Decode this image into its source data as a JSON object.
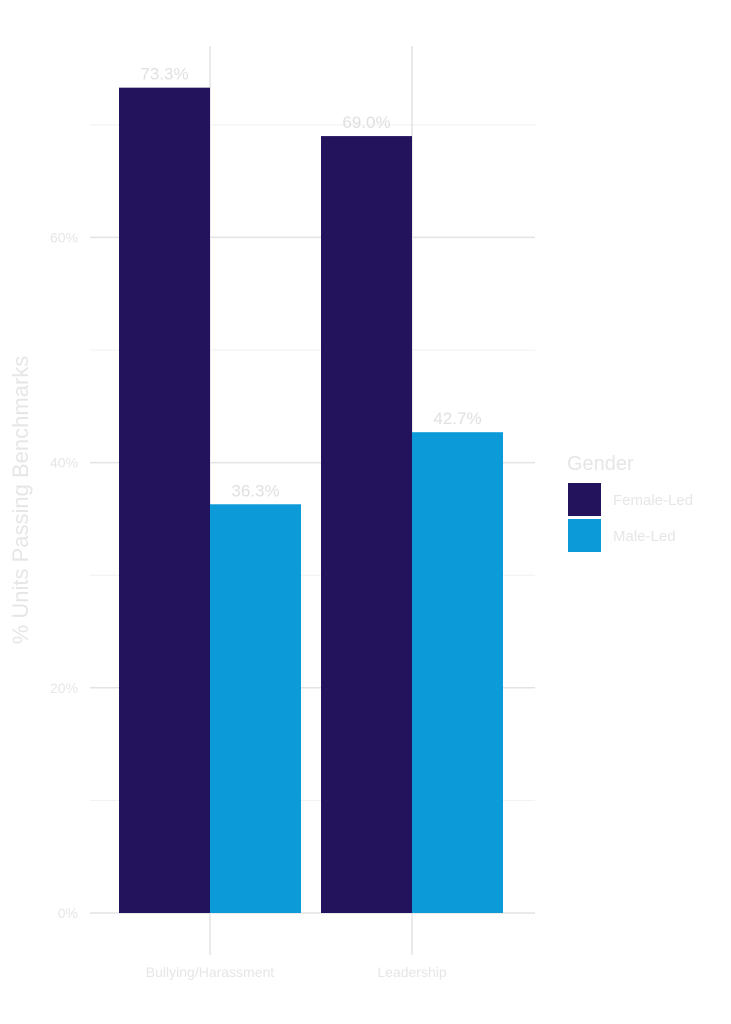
{
  "chart_data": {
    "type": "bar",
    "ylabel": "% Units Passing Benchmarks",
    "xlabel": "",
    "categories": [
      "Bullying/Harassment",
      "Leadership"
    ],
    "series": [
      {
        "name": "Female-Led",
        "values": [
          73.3,
          69.0
        ],
        "labels": [
          "73.3%",
          "69.0%"
        ],
        "color": "#23135c"
      },
      {
        "name": "Male-Led",
        "values": [
          36.3,
          42.7
        ],
        "labels": [
          "36.3%",
          "42.7%"
        ],
        "color": "#0c9ad9"
      }
    ],
    "ylim": [
      0,
      77
    ],
    "yticks": [
      0,
      20,
      40,
      60
    ],
    "ytick_labels": [
      "0%",
      "20%",
      "40%",
      "60%"
    ],
    "grid": true,
    "legend": {
      "title": "Gender",
      "placement": "right"
    }
  }
}
